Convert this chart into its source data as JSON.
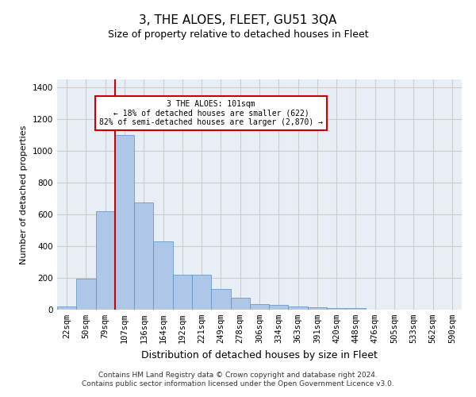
{
  "title": "3, THE ALOES, FLEET, GU51 3QA",
  "subtitle": "Size of property relative to detached houses in Fleet",
  "xlabel": "Distribution of detached houses by size in Fleet",
  "ylabel": "Number of detached properties",
  "categories": [
    "22sqm",
    "50sqm",
    "79sqm",
    "107sqm",
    "136sqm",
    "164sqm",
    "192sqm",
    "221sqm",
    "249sqm",
    "278sqm",
    "306sqm",
    "334sqm",
    "363sqm",
    "391sqm",
    "420sqm",
    "448sqm",
    "476sqm",
    "505sqm",
    "533sqm",
    "562sqm",
    "590sqm"
  ],
  "values": [
    18,
    195,
    620,
    1100,
    675,
    430,
    220,
    220,
    130,
    75,
    35,
    30,
    20,
    15,
    10,
    10,
    2,
    0,
    0,
    0,
    0
  ],
  "bar_color": "#aec6e8",
  "bar_edge_color": "#5a8fc0",
  "vline_color": "#cc0000",
  "vline_x": 3.0,
  "annotation_text": "3 THE ALOES: 101sqm\n← 18% of detached houses are smaller (622)\n82% of semi-detached houses are larger (2,870) →",
  "annotation_box_color": "#ffffff",
  "annotation_box_edge": "#cc0000",
  "ylim": [
    0,
    1450
  ],
  "yticks": [
    0,
    200,
    400,
    600,
    800,
    1000,
    1200,
    1400
  ],
  "grid_color": "#cccccc",
  "bg_color": "#e8eef5",
  "title_fontsize": 11,
  "subtitle_fontsize": 9,
  "ylabel_fontsize": 8,
  "xlabel_fontsize": 9,
  "tick_fontsize": 7.5,
  "footer_text": "Contains HM Land Registry data © Crown copyright and database right 2024.\nContains public sector information licensed under the Open Government Licence v3.0.",
  "footer_fontsize": 6.5
}
